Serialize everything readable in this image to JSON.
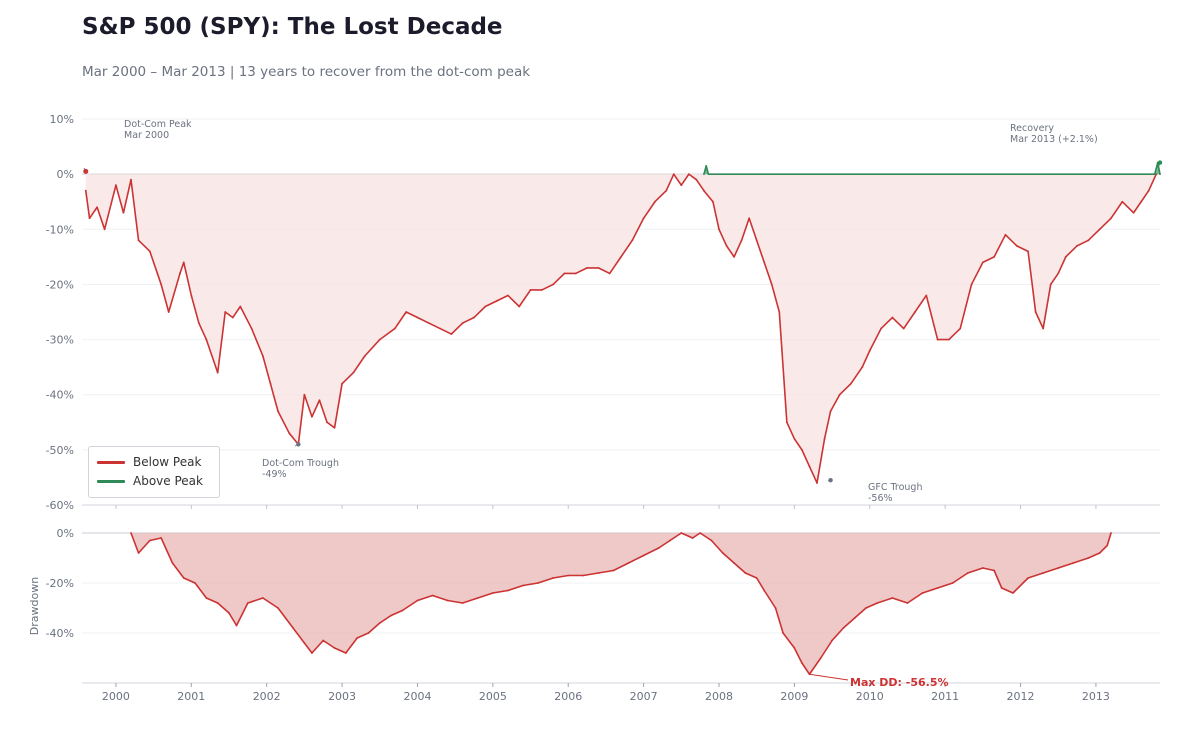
{
  "header": {
    "title": "S&P 500 (SPY): The Lost Decade",
    "subtitle": "Mar 2000 – Mar 2013 | 13 years to recover from the dot-com peak"
  },
  "legend": [
    {
      "label": "Below Peak",
      "color": "#cc3333"
    },
    {
      "label": "Above Peak",
      "color": "#2e8b57"
    }
  ],
  "chart_data": [
    {
      "type": "area",
      "title": "S&P 500 (SPY): The Lost Decade",
      "ylabel": "",
      "ylim": [
        -60,
        12
      ],
      "yticks": [
        10,
        0,
        -10,
        -20,
        -30,
        -40,
        -50,
        -60
      ],
      "ytick_labels": [
        "10%",
        "0%",
        "-10%",
        "-20%",
        "-30%",
        "-40%",
        "-50%",
        "-60%"
      ],
      "xlim": [
        1999.55,
        2013.85
      ],
      "series": [
        {
          "name": "Below Peak",
          "color": "#cc3333",
          "x": [
            1999.6,
            1999.65,
            1999.75,
            1999.85,
            2000.0,
            2000.1,
            2000.2,
            2000.3,
            2000.45,
            2000.6,
            2000.7,
            2000.85,
            2000.9,
            2001.0,
            2001.1,
            2001.2,
            2001.35,
            2001.45,
            2001.55,
            2001.65,
            2001.8,
            2001.95,
            2002.05,
            2002.15,
            2002.3,
            2002.42,
            2002.5,
            2002.6,
            2002.7,
            2002.8,
            2002.9,
            2003.0,
            2003.15,
            2003.3,
            2003.5,
            2003.7,
            2003.85,
            2004.0,
            2004.15,
            2004.3,
            2004.45,
            2004.6,
            2004.75,
            2004.9,
            2005.05,
            2005.2,
            2005.35,
            2005.5,
            2005.65,
            2005.8,
            2005.95,
            2006.1,
            2006.25,
            2006.4,
            2006.55,
            2006.7,
            2006.85,
            2007.0,
            2007.15,
            2007.3,
            2007.4,
            2007.5,
            2007.6,
            2007.7,
            2007.8,
            2007.92,
            2008.0,
            2008.1,
            2008.2,
            2008.3,
            2008.4,
            2008.5,
            2008.6,
            2008.7,
            2008.8,
            2008.9,
            2009.0,
            2009.1,
            2009.2,
            2009.3,
            2009.4,
            2009.48,
            2009.6,
            2009.75,
            2009.9,
            2010.0,
            2010.15,
            2010.3,
            2010.45,
            2010.6,
            2010.75,
            2010.9,
            2011.05,
            2011.2,
            2011.35,
            2011.5,
            2011.65,
            2011.8,
            2011.95,
            2012.1,
            2012.2,
            2012.3,
            2012.4,
            2012.5,
            2012.6,
            2012.75,
            2012.9,
            2013.05,
            2013.2,
            2013.35,
            2013.5,
            2013.6,
            2013.7,
            2013.8
          ],
          "values": [
            -3,
            -8,
            -6,
            -10,
            -2,
            -7,
            -1,
            -12,
            -14,
            -20,
            -25,
            -18,
            -16,
            -22,
            -27,
            -30,
            -36,
            -25,
            -26,
            -24,
            -28,
            -33,
            -38,
            -43,
            -47,
            -49,
            -40,
            -44,
            -41,
            -45,
            -46,
            -38,
            -36,
            -33,
            -30,
            -28,
            -25,
            -26,
            -27,
            -28,
            -29,
            -27,
            -26,
            -24,
            -23,
            -22,
            -24,
            -21,
            -21,
            -20,
            -18,
            -18,
            -17,
            -17,
            -18,
            -15,
            -12,
            -8,
            -5,
            -3,
            0,
            -2,
            0,
            -1,
            -3,
            -5,
            -10,
            -13,
            -15,
            -12,
            -8,
            -12,
            -16,
            -20,
            -25,
            -45,
            -48,
            -50,
            -53,
            -56,
            -48,
            -43,
            -40,
            -38,
            -35,
            -32,
            -28,
            -26,
            -28,
            -25,
            -22,
            -30,
            -30,
            -28,
            -20,
            -16,
            -15,
            -11,
            -13,
            -14,
            -25,
            -28,
            -20,
            -18,
            -15,
            -13,
            -12,
            -10,
            -8,
            -5,
            -7,
            -5,
            -3,
            0
          ]
        },
        {
          "name": "Above Peak",
          "color": "#2e8b57",
          "x": [
            2007.8,
            2007.83,
            2007.86,
            2013.78,
            2013.82,
            2013.85
          ],
          "values": [
            0,
            1.5,
            0,
            0,
            2.1,
            0
          ]
        }
      ],
      "annotations": [
        {
          "line1": "Dot-Com Peak",
          "line2": "Mar 2000",
          "x": 1999.6,
          "value": 0.5
        },
        {
          "line1": "Dot-Com Trough",
          "line2": "-49%",
          "x": 2002.42,
          "value": -49
        },
        {
          "line1": "GFC Trough",
          "line2": "-56%",
          "x": 2009.48,
          "value": -55.5
        },
        {
          "line1": "Recovery",
          "line2": "Mar 2013 (+2.1%)",
          "x": 2013.85,
          "value": 2.1
        }
      ]
    },
    {
      "type": "area",
      "title": "",
      "ylabel": "Drawdown",
      "ylim": [
        -60,
        0
      ],
      "yticks": [
        0,
        -20,
        -40
      ],
      "ytick_labels": [
        "0%",
        "-20%",
        "-40%"
      ],
      "xlim": [
        1999.55,
        2013.85
      ],
      "xticks": [
        2000,
        2001,
        2002,
        2003,
        2004,
        2005,
        2006,
        2007,
        2008,
        2009,
        2010,
        2011,
        2012,
        2013
      ],
      "xtick_labels": [
        "2000",
        "2001",
        "2002",
        "2003",
        "2004",
        "2005",
        "2006",
        "2007",
        "2008",
        "2009",
        "2010",
        "2011",
        "2012",
        "2013"
      ],
      "series": [
        {
          "name": "Drawdown",
          "color": "#cc3333",
          "x": [
            2000.2,
            2000.3,
            2000.45,
            2000.6,
            2000.75,
            2000.9,
            2001.05,
            2001.2,
            2001.35,
            2001.5,
            2001.6,
            2001.75,
            2001.95,
            2002.15,
            2002.35,
            2002.5,
            2002.6,
            2002.75,
            2002.9,
            2003.05,
            2003.2,
            2003.35,
            2003.5,
            2003.65,
            2003.8,
            2004.0,
            2004.2,
            2004.4,
            2004.6,
            2004.8,
            2005.0,
            2005.2,
            2005.4,
            2005.6,
            2005.8,
            2006.0,
            2006.2,
            2006.4,
            2006.6,
            2006.8,
            2007.0,
            2007.2,
            2007.35,
            2007.5,
            2007.65,
            2007.75,
            2007.9,
            2008.05,
            2008.2,
            2008.35,
            2008.5,
            2008.6,
            2008.75,
            2008.85,
            2009.0,
            2009.1,
            2009.2,
            2009.35,
            2009.5,
            2009.65,
            2009.8,
            2009.95,
            2010.1,
            2010.3,
            2010.5,
            2010.7,
            2010.9,
            2011.1,
            2011.3,
            2011.5,
            2011.65,
            2011.75,
            2011.9,
            2012.1,
            2012.3,
            2012.5,
            2012.7,
            2012.9,
            2013.05,
            2013.15,
            2013.2
          ],
          "values": [
            0,
            -8,
            -3,
            -2,
            -12,
            -18,
            -20,
            -26,
            -28,
            -32,
            -37,
            -28,
            -26,
            -30,
            -38,
            -44,
            -48,
            -43,
            -46,
            -48,
            -42,
            -40,
            -36,
            -33,
            -31,
            -27,
            -25,
            -27,
            -28,
            -26,
            -24,
            -23,
            -21,
            -20,
            -18,
            -17,
            -17,
            -16,
            -15,
            -12,
            -9,
            -6,
            -3,
            0,
            -2,
            0,
            -3,
            -8,
            -12,
            -16,
            -18,
            -23,
            -30,
            -40,
            -46,
            -52,
            -56.5,
            -50,
            -43,
            -38,
            -34,
            -30,
            -28,
            -26,
            -28,
            -24,
            -22,
            -20,
            -16,
            -14,
            -15,
            -22,
            -24,
            -18,
            -16,
            -14,
            -12,
            -10,
            -8,
            -5,
            0
          ]
        }
      ],
      "annotations": [
        {
          "text": "Max DD: -56.5%",
          "x": 2009.2,
          "value": -56.5,
          "color": "#cc3333"
        }
      ]
    }
  ]
}
